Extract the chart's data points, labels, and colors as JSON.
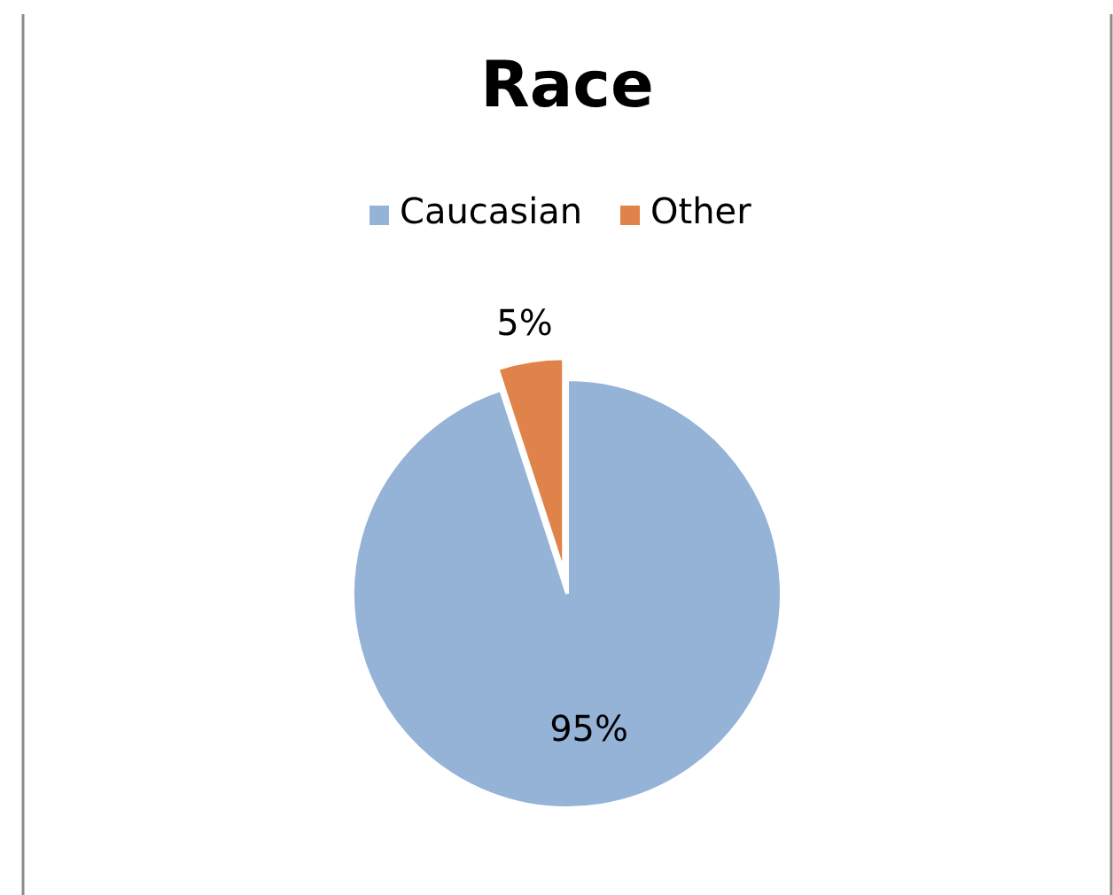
{
  "chart_data": {
    "type": "pie",
    "title": "Race",
    "categories": [
      "Caucasian",
      "Other"
    ],
    "values": [
      95,
      5
    ],
    "colors": [
      "#95b3d7",
      "#e0834a"
    ],
    "value_labels": [
      "95%",
      "5%"
    ],
    "legend": "top"
  }
}
